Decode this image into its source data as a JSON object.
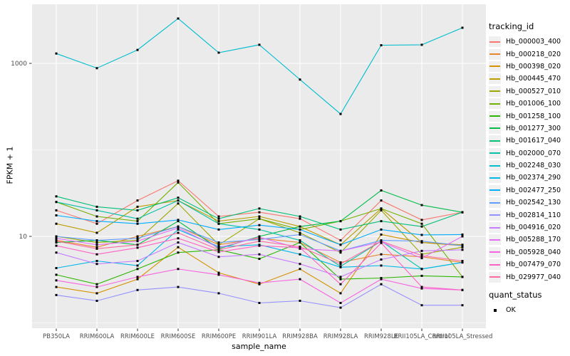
{
  "chart_data": {
    "type": "line",
    "title": "",
    "xlabel": "sample_name",
    "ylabel": "FPKM + 1",
    "legend_title": "tracking_id",
    "x_categories": [
      "PB350LA",
      "RRIM600LA",
      "RRIM600LE",
      "RRIM600SE",
      "RRIM600PE",
      "RRIM901LA",
      "RRIM928BA",
      "RRIM928LA",
      "RRIM928LE",
      "RRII105LA_Control",
      "RRII105LA_Stressed"
    ],
    "y_scale": "log10",
    "y_axis": {
      "tick_values": [
        1000,
        10
      ],
      "tick_labels": [
        "1000",
        "10"
      ],
      "minor_values": [
        100,
        1
      ],
      "range_log10": [
        -0.04,
        3.68
      ]
    },
    "grid": {
      "panel_bg": "#EBEBEB",
      "major_color": "#FFFFFF",
      "minor_color": "#FFFFFF"
    },
    "axis_text_color": "#4D4D4D",
    "tick_mark_color": "#333333",
    "legend_key_bg": "#F0F0F0",
    "point_marker": {
      "shape": "square",
      "color": "#000000",
      "size": 3
    },
    "series": [
      {
        "id": "Hb_000003_400",
        "color": "#F8766D",
        "values": [
          20,
          14,
          26,
          44,
          17,
          19,
          16,
          9,
          26,
          15.5,
          19
        ]
      },
      {
        "id": "Hb_000218_020",
        "color": "#E8842C",
        "values": [
          9,
          7.5,
          10,
          13,
          8,
          9.5,
          8.5,
          5,
          6.2,
          5.8,
          5
        ]
      },
      {
        "id": "Hb_000398_020",
        "color": "#D69100",
        "values": [
          2.6,
          2.2,
          3.2,
          7.5,
          3.8,
          2.8,
          4.2,
          2.2,
          10.5,
          8.5,
          7.8
        ]
      },
      {
        "id": "Hb_000445_470",
        "color": "#BC9D00",
        "values": [
          14,
          11,
          22,
          26,
          15,
          17,
          13,
          8,
          21,
          8.5,
          8
        ]
      },
      {
        "id": "Hb_000527_010",
        "color": "#9DA700",
        "values": [
          10,
          8.5,
          9,
          24,
          8,
          16,
          11,
          6.5,
          20,
          6.2,
          7.5
        ]
      },
      {
        "id": "Hb_001006_100",
        "color": "#72B000",
        "values": [
          25,
          17,
          15,
          42,
          14,
          16,
          12,
          15,
          21,
          14,
          3.4
        ]
      },
      {
        "id": "Hb_001258_100",
        "color": "#2CB600",
        "values": [
          3.6,
          2.8,
          4.2,
          6.5,
          7,
          5.5,
          8.5,
          3.2,
          3.3,
          3.5,
          3.4
        ]
      },
      {
        "id": "Hb_001277_300",
        "color": "#00BB48",
        "values": [
          8.5,
          9,
          8,
          15,
          7.2,
          10,
          13,
          15,
          34,
          23,
          19
        ]
      },
      {
        "id": "Hb_001617_040",
        "color": "#00BF78",
        "values": [
          29,
          22,
          20,
          28,
          16,
          21,
          17,
          12,
          15,
          13,
          19
        ]
      },
      {
        "id": "Hb_002000_070",
        "color": "#00C0A5",
        "values": [
          25,
          20,
          16,
          26,
          14,
          12,
          9,
          4.5,
          8.8,
          4.2,
          5
        ]
      },
      {
        "id": "Hb_002248_030",
        "color": "#00BDCE",
        "values": [
          1300,
          880,
          1430,
          3300,
          1330,
          1640,
          650,
          260,
          1620,
          1640,
          2580
        ]
      },
      {
        "id": "Hb_002374_290",
        "color": "#00B7E9",
        "values": [
          4.3,
          5.2,
          4.6,
          12,
          7.6,
          8,
          6.2,
          4.4,
          4.6,
          4.2,
          5
        ]
      },
      {
        "id": "Hb_002477_250",
        "color": "#00ACFC",
        "values": [
          17.5,
          15,
          14,
          15.5,
          12,
          13.5,
          12,
          8,
          12,
          10.4,
          10.5
        ]
      },
      {
        "id": "Hb_002542_130",
        "color": "#619CFF",
        "values": [
          10,
          9,
          9.5,
          13,
          8.5,
          9.2,
          10.5,
          6.8,
          9,
          8.8,
          7.8
        ]
      },
      {
        "id": "Hb_002814_110",
        "color": "#9590FF",
        "values": [
          2.1,
          1.8,
          2.4,
          2.6,
          2.2,
          1.7,
          1.8,
          1.5,
          2.8,
          1.6,
          1.6
        ]
      },
      {
        "id": "Hb_004916_020",
        "color": "#C77CFF",
        "values": [
          6.5,
          4.8,
          5.2,
          8.5,
          5.8,
          6.2,
          4.8,
          3.4,
          5.4,
          6.8,
          7
        ]
      },
      {
        "id": "Hb_005288_170",
        "color": "#E36EF6",
        "values": [
          9.5,
          8,
          8.8,
          12.5,
          7.4,
          9.8,
          7.2,
          6.8,
          8.6,
          5.6,
          10
        ]
      },
      {
        "id": "Hb_005928_040",
        "color": "#F763E0",
        "values": [
          3.1,
          2.6,
          3.4,
          4.2,
          3.6,
          2.9,
          3.2,
          1.7,
          3.2,
          2.5,
          2.4
        ]
      },
      {
        "id": "Hb_007479_070",
        "color": "#FF61C7",
        "values": [
          7.8,
          6.2,
          7.4,
          9.5,
          6.6,
          7.8,
          7.4,
          2.8,
          8.4,
          2.6,
          2.4
        ]
      },
      {
        "id": "Hb_029977_040",
        "color": "#FF68A1",
        "values": [
          8.8,
          7.2,
          8,
          11,
          7,
          8.8,
          7.6,
          4.8,
          8.8,
          6,
          5.2
        ]
      }
    ],
    "quant_legend": {
      "title": "quant_status",
      "items": [
        {
          "label": "OK",
          "marker": "black-square"
        }
      ]
    }
  }
}
